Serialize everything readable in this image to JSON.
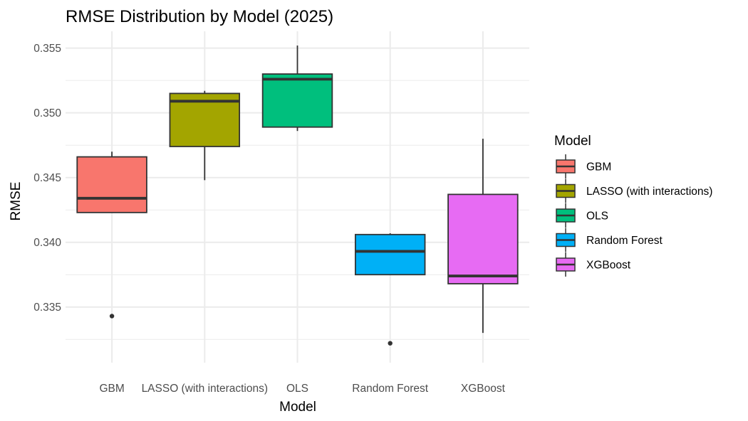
{
  "chart_data": {
    "type": "boxplot",
    "title": "RMSE Distribution by Model (2025)",
    "xlabel": "Model",
    "ylabel": "RMSE",
    "ylim": [
      0.3307,
      0.3563
    ],
    "yticks": [
      0.335,
      0.34,
      0.345,
      0.35,
      0.355
    ],
    "ytick_labels": [
      "0.335",
      "0.340",
      "0.345",
      "0.350",
      "0.355"
    ],
    "grid": true,
    "legend": {
      "title": "Model",
      "position": "right"
    },
    "categories": [
      "GBM",
      "LASSO (with interactions)",
      "OLS",
      "Random Forest",
      "XGBoost"
    ],
    "series": [
      {
        "name": "GBM",
        "color": "#F8766D",
        "whisker_low": 0.3423,
        "q1": 0.3423,
        "median": 0.3434,
        "q3": 0.3466,
        "whisker_high": 0.347,
        "outliers": [
          0.3343
        ]
      },
      {
        "name": "LASSO (with interactions)",
        "color": "#A3A500",
        "whisker_low": 0.3448,
        "q1": 0.3474,
        "median": 0.3509,
        "q3": 0.3515,
        "whisker_high": 0.3517,
        "outliers": []
      },
      {
        "name": "OLS",
        "color": "#00BF7D",
        "whisker_low": 0.3486,
        "q1": 0.3489,
        "median": 0.3526,
        "q3": 0.353,
        "whisker_high": 0.3552,
        "outliers": []
      },
      {
        "name": "Random Forest",
        "color": "#00B0F6",
        "whisker_low": 0.3375,
        "q1": 0.3375,
        "median": 0.3393,
        "q3": 0.3406,
        "whisker_high": 0.3407,
        "outliers": [
          0.3322
        ]
      },
      {
        "name": "XGBoost",
        "color": "#E76BF3",
        "whisker_low": 0.333,
        "q1": 0.3368,
        "median": 0.3374,
        "q3": 0.3437,
        "whisker_high": 0.348,
        "outliers": []
      }
    ]
  }
}
